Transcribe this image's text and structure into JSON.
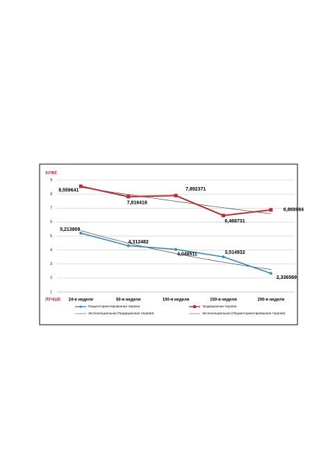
{
  "chart_data": {
    "type": "line",
    "annotations": [
      "ХУЖЕ",
      "ЛУЧШЕ"
    ],
    "categories": [
      "24-я неделя",
      "50-я неделя",
      "100-я неделя",
      "150-я неделя",
      "200-я неделя"
    ],
    "series": [
      {
        "name": "Пациенториентированная терапия",
        "color": "#2e86c1",
        "marker": "diamond",
        "values": [
          5.213809,
          4.312482,
          4.049511,
          3.514932,
          2.336569
        ],
        "value_labels": [
          "5,213809",
          "4,312482",
          "4,049511",
          "3,514932",
          "2,336569"
        ]
      },
      {
        "name": "Традиционная терапия",
        "color": "#c0262d",
        "marker": "square",
        "values": [
          8.559641,
          7.816418,
          7.892371,
          6.468731,
          6.869984
        ],
        "value_labels": [
          "8,559641",
          "7,816418",
          "7,892371",
          "6,468731",
          "6,869984"
        ]
      }
    ],
    "trendlines": [
      {
        "name": "Экспоненциальная (Традиционная терапия)",
        "of": "Традиционная терапия",
        "fit": "exponential",
        "color": "#444444"
      },
      {
        "name": "Экспоненциальная (Пациенториентированная терапия)",
        "of": "Пациенториентированная терапия",
        "fit": "exponential",
        "color": "#444444"
      }
    ],
    "ylim": [
      1,
      9
    ],
    "yticks": [
      1,
      2,
      3,
      4,
      5,
      6,
      7,
      8,
      9
    ],
    "grid": true
  }
}
